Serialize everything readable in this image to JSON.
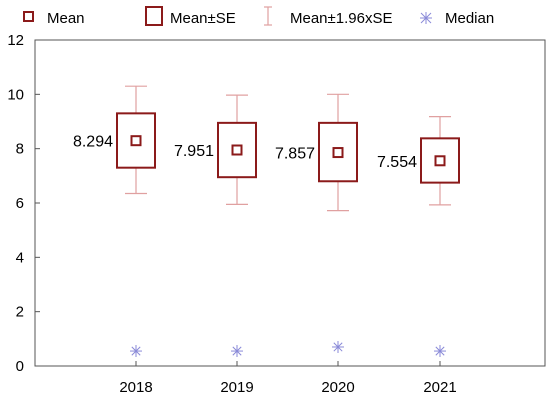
{
  "chart_data": {
    "type": "box",
    "categories": [
      "2018",
      "2019",
      "2020",
      "2021"
    ],
    "legend": {
      "placement": "top",
      "entries": [
        "Mean",
        "Mean±SE",
        "Mean±1.96xSE",
        "Median"
      ]
    },
    "series": [
      {
        "name": "Mean",
        "values": [
          8.294,
          7.951,
          7.857,
          7.554
        ]
      },
      {
        "name": "Mean±SE",
        "lower": [
          7.3,
          6.95,
          6.8,
          6.75
        ],
        "upper": [
          9.3,
          8.95,
          8.95,
          8.38
        ]
      },
      {
        "name": "Mean±1.96xSE",
        "lower": [
          6.35,
          5.95,
          5.72,
          5.93
        ],
        "upper": [
          10.3,
          9.97,
          10.0,
          9.18
        ]
      },
      {
        "name": "Median",
        "values": [
          0.55,
          0.55,
          0.7,
          0.55
        ]
      }
    ],
    "data_labels": [
      "8.294",
      "7.951",
      "7.857",
      "7.554"
    ],
    "yticks": [
      "0",
      "2",
      "4",
      "6",
      "8",
      "10",
      "12"
    ],
    "ylim": [
      0,
      12
    ],
    "grid": false,
    "colors": {
      "mean": "#8b1a1a",
      "se_box": "#8b1a1a",
      "whisker": "#e0a0a0",
      "median": "#8a8ad8",
      "axis": "#555555"
    }
  }
}
